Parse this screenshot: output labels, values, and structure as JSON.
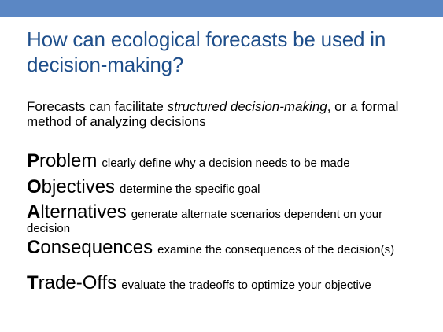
{
  "slide": {
    "title": "How can ecological forecasts be used in decision-making?",
    "intro_before": "Forecasts can facilitate ",
    "intro_em": "structured decision-making",
    "intro_after": ", or a formal method of analyzing decisions",
    "steps": [
      {
        "initial": "P",
        "rest": "roblem",
        "desc": "clearly define why a decision needs to be made"
      },
      {
        "initial": "O",
        "rest": "bjectives",
        "desc": "determine the specific goal"
      },
      {
        "initial": "A",
        "rest": "lternatives",
        "desc": "generate alternate scenarios dependent on your decision"
      },
      {
        "initial": "C",
        "rest": "onsequences",
        "desc": "examine the consequences of the decision(s)"
      },
      {
        "initial": "T",
        "rest": "rade-Offs",
        "desc": "evaluate the tradeoffs to optimize your objective"
      }
    ]
  },
  "colors": {
    "top_bar": "#5b87c4",
    "title": "#1f4f8b"
  }
}
